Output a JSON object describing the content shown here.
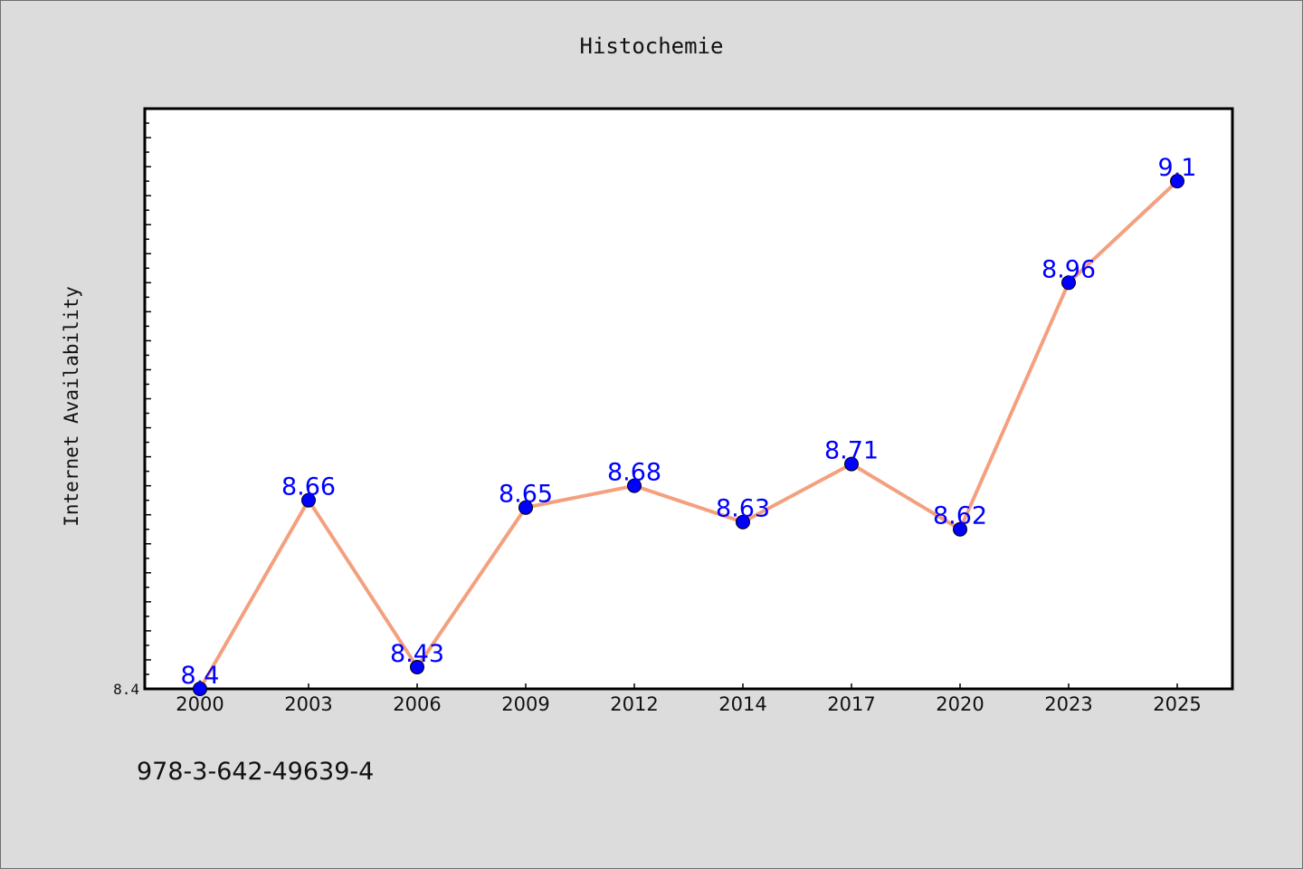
{
  "chart_data": {
    "type": "line",
    "title": "Histochemie",
    "xlabel": "",
    "ylabel": "Internet Availability",
    "categories": [
      "2000",
      "2003",
      "2006",
      "2009",
      "2012",
      "2014",
      "2017",
      "2020",
      "2023",
      "2025"
    ],
    "series": [
      {
        "values": [
          8.4,
          8.66,
          8.43,
          8.65,
          8.68,
          8.63,
          8.71,
          8.62,
          8.96,
          9.1
        ],
        "line_color": "#f4a07e",
        "marker_color": "#0000ff",
        "label_color": "#0000ff"
      }
    ],
    "y_tick_labels": [
      "8.4"
    ],
    "ylim": [
      8.4,
      9.2
    ],
    "grid": false,
    "legend": "none"
  },
  "footer_note": "978-3-642-49639-4"
}
